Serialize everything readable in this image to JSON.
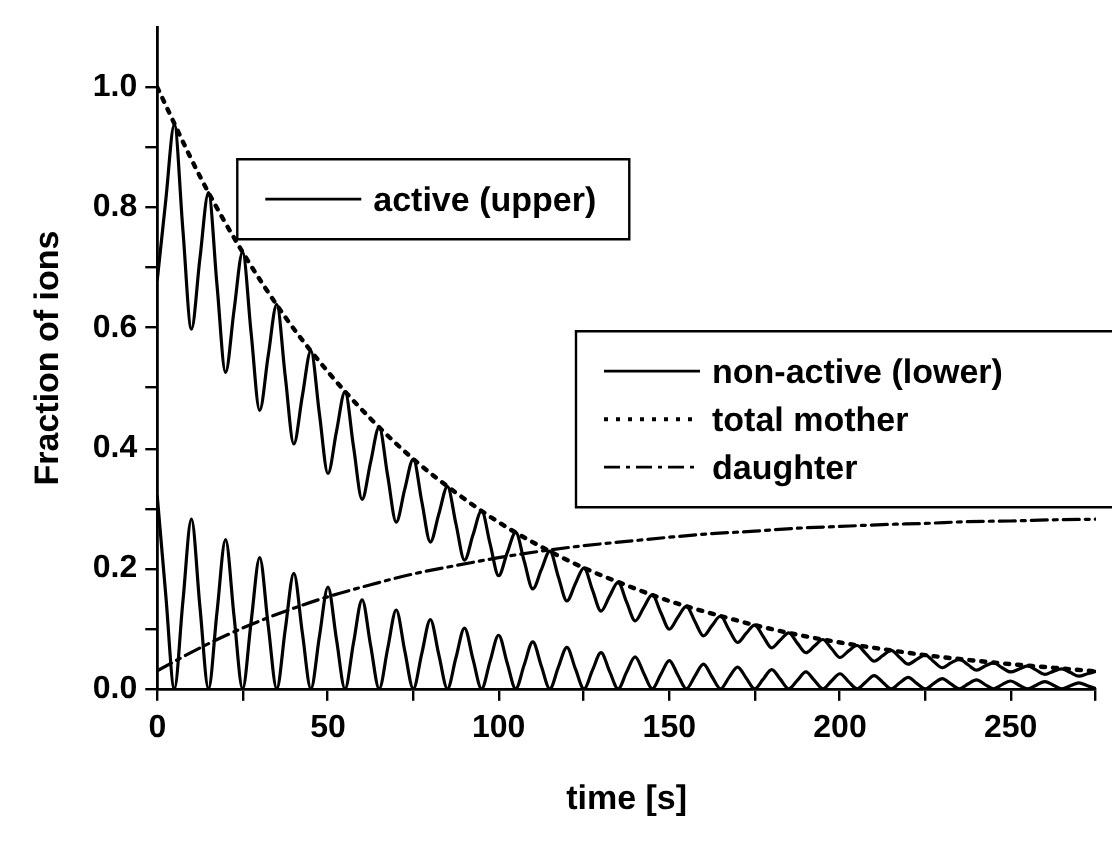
{
  "chart_data": {
    "type": "line",
    "xlabel": "time [s]",
    "ylabel": "Fraction of ions",
    "xlim": [
      0,
      275
    ],
    "ylim": [
      0,
      1.1
    ],
    "xticks": [
      0,
      {
        "value": 25,
        "label": null
      },
      50,
      {
        "value": 75,
        "label": null
      },
      100,
      {
        "value": 125,
        "label": null
      },
      150,
      {
        "value": 175,
        "label": null
      },
      200,
      {
        "value": 225,
        "label": null
      },
      250,
      {
        "value": 275,
        "label": null
      }
    ],
    "yticks": [
      {
        "value": 0,
        "label": "0.0"
      },
      {
        "value": 0.1,
        "label": null
      },
      0.2,
      {
        "value": 0.3,
        "label": null
      },
      0.4,
      {
        "value": 0.5,
        "label": null
      },
      0.6,
      {
        "value": 0.7,
        "label": null
      },
      0.8,
      {
        "value": 0.9,
        "label": null
      },
      {
        "value": 1,
        "label": "1.0"
      }
    ],
    "grid": false,
    "legend": "top right",
    "marker": "none",
    "series": [
      {
        "name": "active (upper)",
        "color": "#000000",
        "line_style": "solid",
        "x": [
          0,
          2.5,
          5,
          7.5,
          10,
          12.5,
          15,
          17.5,
          20,
          22.5,
          25,
          27.5,
          30,
          32.5,
          35,
          37.5,
          40,
          42.5,
          45,
          47.5,
          50,
          52.5,
          55,
          57.5,
          60,
          62.5,
          65,
          67.5,
          70,
          72.5,
          75,
          77.5,
          80,
          82.5,
          85,
          87.5,
          90,
          92.5,
          95,
          97.5,
          100,
          102.5,
          105,
          107.5,
          110,
          112.5,
          115,
          117.5,
          120,
          122.5,
          125,
          127.5,
          130,
          132.5,
          135,
          137.5,
          140,
          142.5,
          145,
          147.5,
          150,
          152.5,
          155,
          157.5,
          160,
          162.5,
          165,
          167.5,
          170,
          172.5,
          175,
          177.5,
          180,
          182.5,
          185,
          187.5,
          190,
          192.5,
          195,
          197.5,
          200,
          202.5,
          205,
          207.5,
          210,
          212.5,
          215,
          217.5,
          220,
          222.5,
          225,
          227.5,
          230,
          232.5,
          235,
          237.5,
          240,
          242.5,
          245,
          247.5,
          250,
          252.5,
          255,
          257.5,
          260,
          262.5,
          265,
          267.5,
          270,
          272.5,
          275
        ],
        "values": [
          0.68,
          0.813,
          0.938,
          0.763,
          0.598,
          0.716,
          0.825,
          0.671,
          0.526,
          0.63,
          0.726,
          0.591,
          0.463,
          0.554,
          0.639,
          0.519,
          0.407,
          0.487,
          0.562,
          0.457,
          0.358,
          0.428,
          0.494,
          0.402,
          0.315,
          0.377,
          0.435,
          0.354,
          0.277,
          0.332,
          0.382,
          0.311,
          0.244,
          0.291,
          0.336,
          0.274,
          0.214,
          0.256,
          0.296,
          0.241,
          0.188,
          0.226,
          0.26,
          0.212,
          0.166,
          0.198,
          0.229,
          0.186,
          0.146,
          0.175,
          0.201,
          0.164,
          0.129,
          0.154,
          0.177,
          0.144,
          0.113,
          0.135,
          0.156,
          0.127,
          0.099,
          0.119,
          0.137,
          0.112,
          0.088,
          0.105,
          0.121,
          0.098,
          0.077,
          0.092,
          0.106,
          0.087,
          0.068,
          0.081,
          0.093,
          0.076,
          0.06,
          0.071,
          0.082,
          0.067,
          0.052,
          0.063,
          0.072,
          0.059,
          0.046,
          0.055,
          0.064,
          0.052,
          0.041,
          0.049,
          0.056,
          0.045,
          0.035,
          0.043,
          0.049,
          0.04,
          0.031,
          0.038,
          0.043,
          0.035,
          0.028,
          0.033,
          0.038,
          0.031,
          0.024,
          0.029,
          0.033,
          0.027,
          0.021,
          0.025,
          0.029
        ]
      },
      {
        "name": "non-active (lower)",
        "color": "#000000",
        "line_style": "solid",
        "x": [
          0,
          2.5,
          5,
          7.5,
          10,
          12.5,
          15,
          17.5,
          20,
          22.5,
          25,
          27.5,
          30,
          32.5,
          35,
          37.5,
          40,
          42.5,
          45,
          47.5,
          50,
          52.5,
          55,
          57.5,
          60,
          62.5,
          65,
          67.5,
          70,
          72.5,
          75,
          77.5,
          80,
          82.5,
          85,
          87.5,
          90,
          92.5,
          95,
          97.5,
          100,
          102.5,
          105,
          107.5,
          110,
          112.5,
          115,
          117.5,
          120,
          122.5,
          125,
          127.5,
          130,
          132.5,
          135,
          137.5,
          140,
          142.5,
          145,
          147.5,
          150,
          152.5,
          155,
          157.5,
          160,
          162.5,
          165,
          167.5,
          170,
          172.5,
          175,
          177.5,
          180,
          182.5,
          185,
          187.5,
          190,
          192.5,
          195,
          197.5,
          200,
          202.5,
          205,
          207.5,
          210,
          212.5,
          215,
          217.5,
          220,
          222.5,
          225,
          227.5,
          230,
          232.5,
          235,
          237.5,
          240,
          242.5,
          245,
          247.5,
          250,
          252.5,
          255,
          257.5,
          260,
          262.5,
          265,
          267.5,
          270,
          272.5,
          275
        ],
        "values": [
          0.32,
          0.155,
          0,
          0.145,
          0.282,
          0.136,
          0,
          0.128,
          0.248,
          0.12,
          0,
          0.112,
          0.218,
          0.105,
          0,
          0.099,
          0.192,
          0.093,
          0,
          0.087,
          0.169,
          0.082,
          0,
          0.077,
          0.148,
          0.072,
          0,
          0.067,
          0.131,
          0.063,
          0,
          0.059,
          0.115,
          0.056,
          0,
          0.052,
          0.101,
          0.049,
          0,
          0.046,
          0.089,
          0.043,
          0,
          0.04,
          0.078,
          0.038,
          0,
          0.036,
          0.069,
          0.033,
          0,
          0.031,
          0.06,
          0.029,
          0,
          0.028,
          0.053,
          0.026,
          0,
          0.024,
          0.047,
          0.023,
          0,
          0.021,
          0.041,
          0.02,
          0,
          0.019,
          0.036,
          0.018,
          0,
          0.016,
          0.032,
          0.016,
          0,
          0.014,
          0.028,
          0.014,
          0,
          0.013,
          0.025,
          0.012,
          0,
          0.011,
          0.022,
          0.011,
          0,
          0.01,
          0.019,
          0.009,
          0,
          0.009,
          0.017,
          0.008,
          0,
          0.008,
          0.015,
          0.007,
          0,
          0.007,
          0.013,
          0.006,
          0,
          0.006,
          0.012,
          0.006,
          0,
          0.005,
          0.01,
          0.005,
          0
        ]
      },
      {
        "name": "total mother",
        "color": "#000000",
        "line_style": "dotted",
        "x": [
          0,
          12.5,
          25,
          37.5,
          50,
          62.5,
          75,
          87.5,
          100,
          112.5,
          125,
          137.5,
          150,
          162.5,
          175,
          187.5,
          200,
          212.5,
          225,
          237.5,
          250,
          262.5,
          275
        ],
        "values": [
          1.0,
          0.852,
          0.726,
          0.618,
          0.527,
          0.449,
          0.382,
          0.326,
          0.277,
          0.236,
          0.201,
          0.172,
          0.146,
          0.125,
          0.106,
          0.09,
          0.077,
          0.066,
          0.056,
          0.048,
          0.041,
          0.035,
          0.029
        ]
      },
      {
        "name": "daughter",
        "color": "#000000",
        "line_style": "dashed",
        "x": [
          0,
          12.5,
          25,
          37.5,
          50,
          62.5,
          75,
          87.5,
          100,
          112.5,
          125,
          137.5,
          150,
          162.5,
          175,
          187.5,
          200,
          212.5,
          225,
          237.5,
          250,
          262.5,
          275
        ],
        "values": [
          0.03,
          0.068,
          0.101,
          0.129,
          0.153,
          0.173,
          0.191,
          0.205,
          0.218,
          0.229,
          0.238,
          0.245,
          0.252,
          0.258,
          0.262,
          0.267,
          0.27,
          0.273,
          0.275,
          0.278,
          0.279,
          0.281,
          0.282
        ]
      }
    ]
  }
}
